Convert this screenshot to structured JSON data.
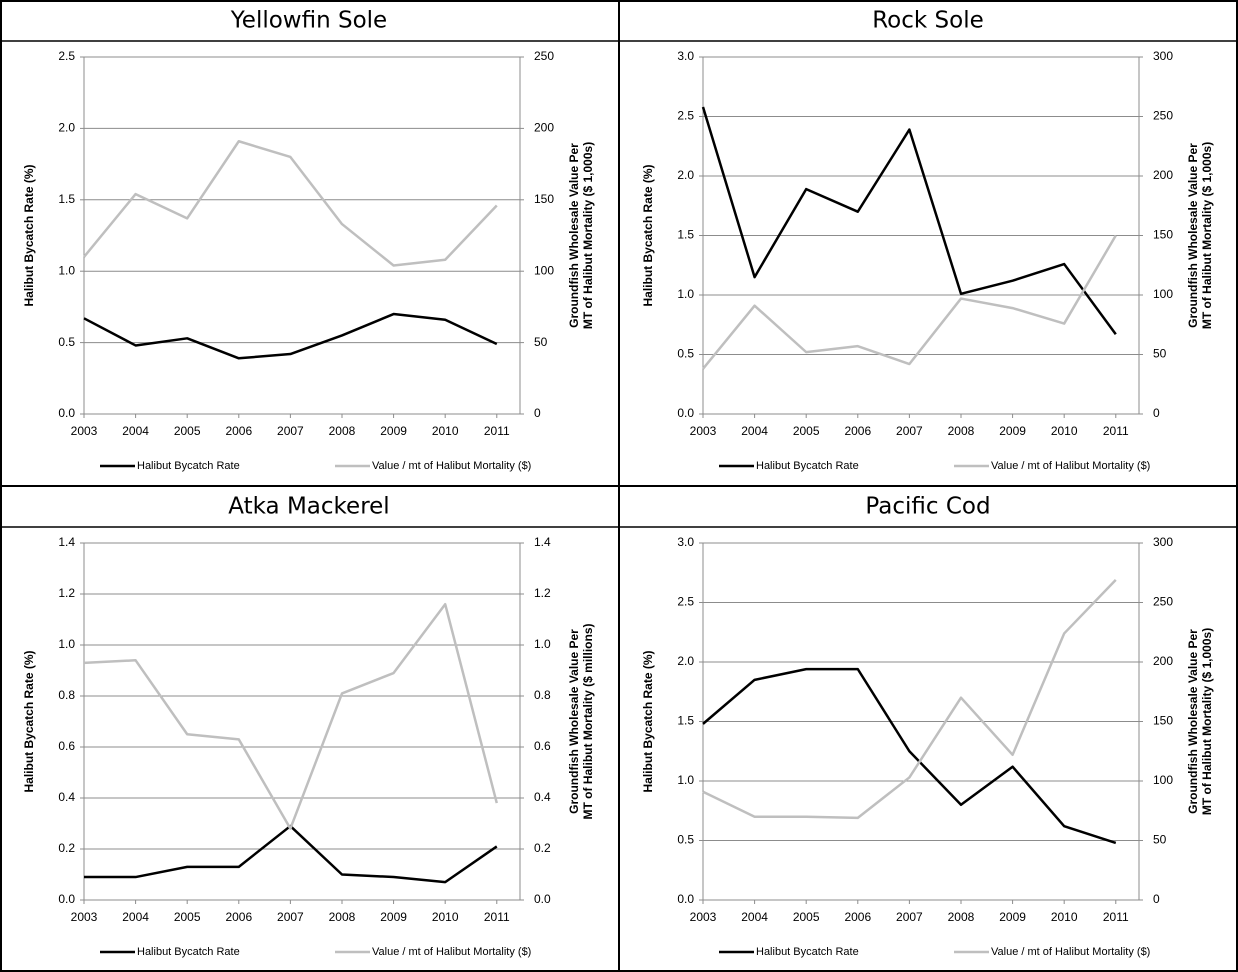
{
  "chart_data": [
    {
      "type": "line",
      "title": "Yellowfin Sole",
      "ylabel": "Halibut Bycatch Rate (%)",
      "y2label": [
        "Groundfish Wholesale Value Per",
        "MT of Halibut Mortality ($ 1,000s)"
      ],
      "categories": [
        "2003",
        "2004",
        "2005",
        "2006",
        "2007",
        "2008",
        "2009",
        "2010",
        "2011"
      ],
      "series": [
        {
          "name": "Halibut Bycatch Rate",
          "color": "#000000",
          "values": [
            0.67,
            0.48,
            0.53,
            0.39,
            0.42,
            0.55,
            0.7,
            0.66,
            0.49
          ]
        },
        {
          "name": "Value / mt of Halibut Mortality ($)",
          "color": "#bfbfbf",
          "axis": "y2",
          "values": [
            110,
            154,
            137,
            191,
            180,
            133,
            104,
            108,
            146
          ]
        }
      ],
      "ylim": [
        0,
        2.5
      ],
      "yticks": [
        {
          "value": 0,
          "label": "0.0"
        },
        0.5,
        {
          "value": 1,
          "label": "1.0"
        },
        1.5,
        {
          "value": 2,
          "label": "2.0"
        },
        2.5
      ],
      "y2lim": [
        0,
        250
      ],
      "y2ticks": [
        0,
        50,
        100,
        150,
        200,
        250
      ],
      "grid": true
    },
    {
      "type": "line",
      "title": "Rock Sole",
      "ylabel": "Halibut Bycatch Rate (%)",
      "y2label": [
        "Groundfish Wholesale Value Per",
        "MT of Halibut Mortality ($ 1,000s)"
      ],
      "categories": [
        "2003",
        "2004",
        "2005",
        "2006",
        "2007",
        "2008",
        "2009",
        "2010",
        "2011"
      ],
      "series": [
        {
          "name": "Halibut Bycatch Rate",
          "color": "#000000",
          "values": [
            2.58,
            1.15,
            1.89,
            1.7,
            2.39,
            1.01,
            1.12,
            1.26,
            0.67
          ]
        },
        {
          "name": "Value / mt of Halibut Mortality ($)",
          "color": "#bfbfbf",
          "axis": "y2",
          "values": [
            38,
            91,
            52,
            57,
            42,
            97,
            89,
            76,
            150
          ]
        }
      ],
      "ylim": [
        0,
        3
      ],
      "yticks": [
        {
          "value": 0,
          "label": "0.0"
        },
        0.5,
        {
          "value": 1,
          "label": "1.0"
        },
        1.5,
        {
          "value": 2,
          "label": "2.0"
        },
        2.5,
        {
          "value": 3,
          "label": "3.0"
        }
      ],
      "y2lim": [
        0,
        300
      ],
      "y2ticks": [
        0,
        50,
        100,
        150,
        200,
        250,
        300
      ],
      "grid": true
    },
    {
      "type": "line",
      "title": "Atka Mackerel",
      "ylabel": "Halibut Bycatch Rate (%)",
      "y2label": [
        "Groundfish Wholesale Value Per",
        "MT of Halibut Mortality ($ millions)"
      ],
      "categories": [
        "2003",
        "2004",
        "2005",
        "2006",
        "2007",
        "2008",
        "2009",
        "2010",
        "2011"
      ],
      "series": [
        {
          "name": "Halibut Bycatch Rate",
          "color": "#000000",
          "values": [
            0.09,
            0.09,
            0.13,
            0.13,
            0.29,
            0.1,
            0.09,
            0.07,
            0.21
          ]
        },
        {
          "name": "Value / mt of Halibut Mortality ($)",
          "color": "#bfbfbf",
          "axis": "y2",
          "values": [
            0.93,
            0.94,
            0.65,
            0.63,
            0.28,
            0.81,
            0.89,
            1.16,
            0.38
          ]
        }
      ],
      "ylim": [
        0,
        1.4
      ],
      "yticks": [
        {
          "value": 0,
          "label": "0.0"
        },
        0.2,
        0.4,
        0.6,
        0.8,
        {
          "value": 1,
          "label": "1.0"
        },
        1.2,
        1.4
      ],
      "y2lim": [
        0,
        1.4
      ],
      "y2ticks": [
        {
          "value": 0,
          "label": "0.0"
        },
        0.2,
        0.4,
        0.6,
        0.8,
        {
          "value": 1,
          "label": "1.0"
        },
        1.2,
        1.4
      ],
      "grid": true
    },
    {
      "type": "line",
      "title": "Pacific Cod",
      "ylabel": "Halibut Bycatch Rate (%)",
      "y2label": [
        "Groundfish Wholesale Value Per",
        "MT of Halibut Mortality ($ 1,000s)"
      ],
      "categories": [
        "2003",
        "2004",
        "2005",
        "2006",
        "2007",
        "2008",
        "2009",
        "2010",
        "2011"
      ],
      "series": [
        {
          "name": "Halibut Bycatch Rate",
          "color": "#000000",
          "values": [
            1.48,
            1.85,
            1.94,
            1.94,
            1.25,
            0.8,
            1.12,
            0.62,
            0.48
          ]
        },
        {
          "name": "Value / mt of Halibut Mortality ($)",
          "color": "#bfbfbf",
          "axis": "y2",
          "values": [
            91,
            70,
            70,
            69,
            103,
            170,
            122,
            224,
            269
          ]
        }
      ],
      "ylim": [
        0,
        3
      ],
      "yticks": [
        {
          "value": 0,
          "label": "0.0"
        },
        0.5,
        {
          "value": 1,
          "label": "1.0"
        },
        1.5,
        {
          "value": 2,
          "label": "2.0"
        },
        2.5,
        {
          "value": 3,
          "label": "3.0"
        }
      ],
      "y2lim": [
        0,
        300
      ],
      "y2ticks": [
        0,
        50,
        100,
        150,
        200,
        250,
        300
      ],
      "grid": true
    }
  ]
}
